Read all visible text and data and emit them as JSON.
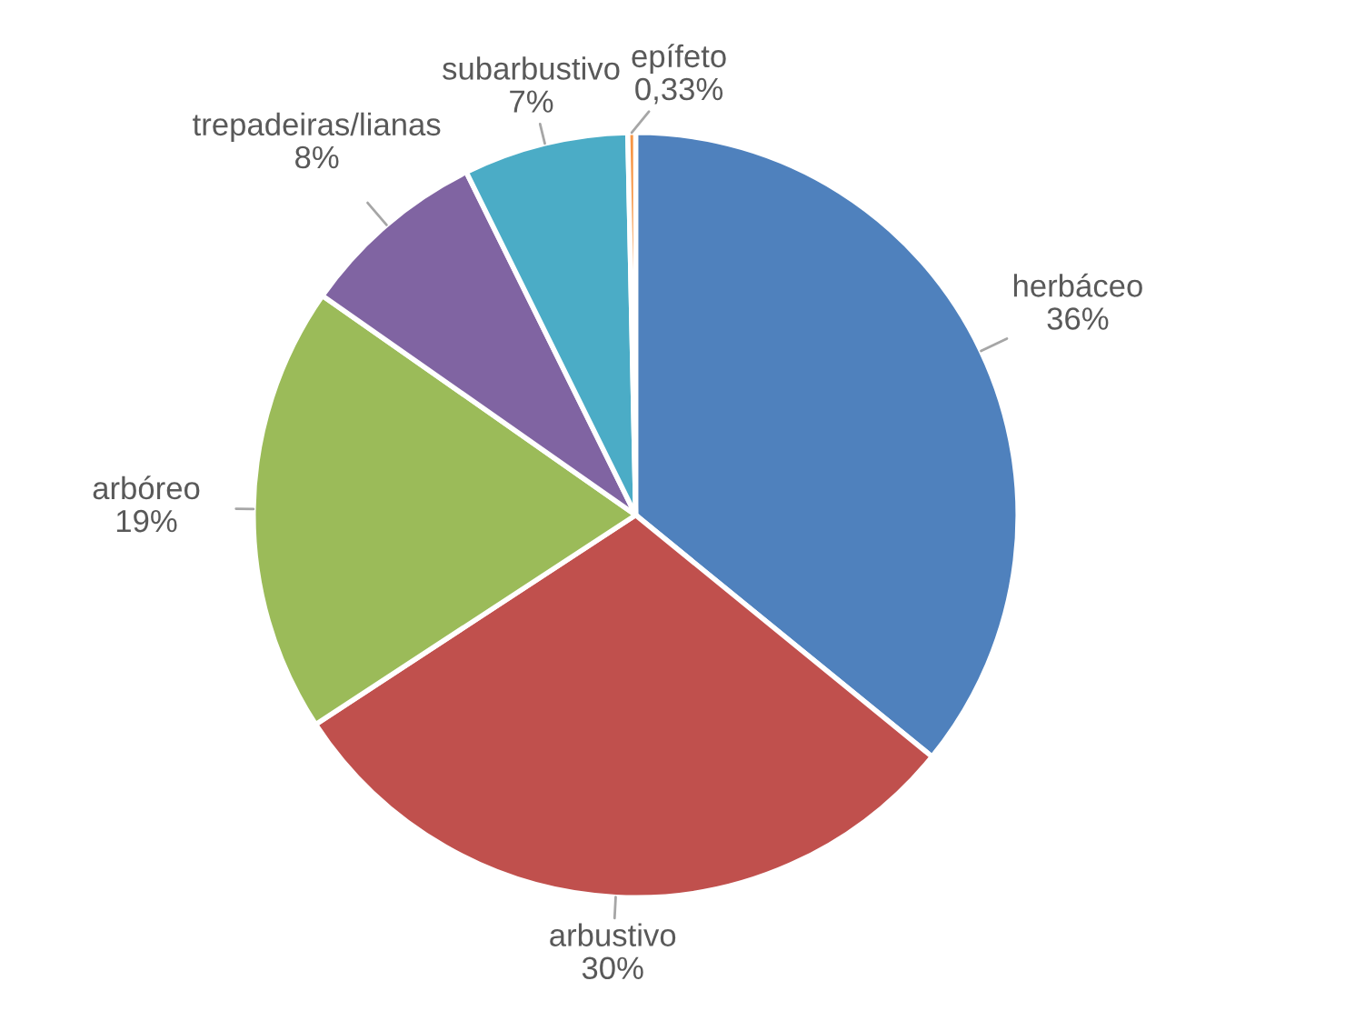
{
  "chart_data": {
    "type": "pie",
    "categories": [
      "herbáceo",
      "arbustivo",
      "arbóreo",
      "trepadeiras/lianas",
      "subarbustivo",
      "epífeto"
    ],
    "values": [
      36,
      30,
      19,
      8,
      7,
      0.33
    ],
    "value_labels": [
      "36%",
      "30%",
      "19%",
      "8%",
      "7%",
      "0,33%"
    ],
    "colors": [
      "#4f81bd",
      "#c0504d",
      "#9bbb59",
      "#8064a2",
      "#4bacc6",
      "#f79646"
    ],
    "legend": false
  }
}
